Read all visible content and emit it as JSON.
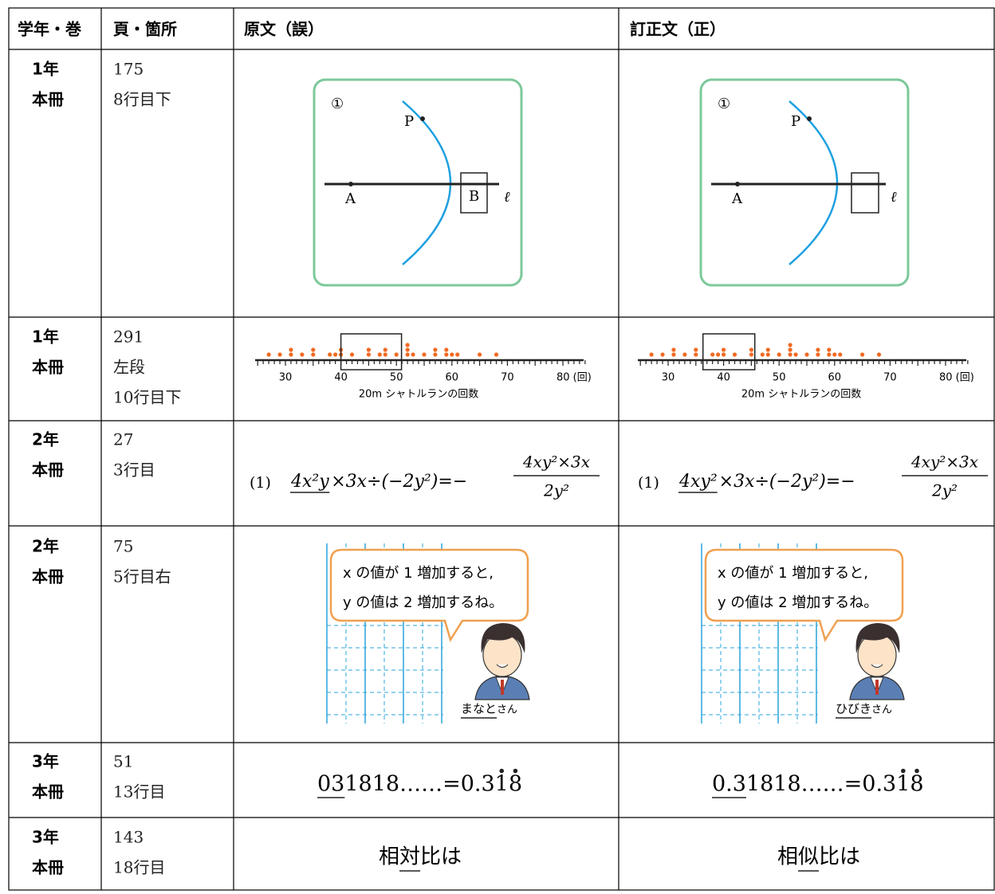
{
  "table": {
    "header": [
      "学年・巻",
      "頁・箇所",
      "原文（誤）",
      "訂正文（正）"
    ],
    "rows": [
      {
        "grade": [
          "1年",
          "本冊"
        ],
        "place": [
          "175",
          "8行目下"
        ],
        "original": {
          "circle_label": "①",
          "points": [
            "P",
            "A",
            "B"
          ],
          "line_label": "ℓ"
        },
        "corrected": {
          "circle_label": "①",
          "points": [
            "P",
            "A"
          ],
          "line_label": "ℓ"
        }
      },
      {
        "grade": [
          "1年",
          "本冊"
        ],
        "place": [
          "291",
          "左段",
          "10行目下"
        ],
        "original": {
          "ticks": [
            "30",
            "40",
            "50",
            "60",
            "70",
            "80 (回)"
          ],
          "axis_label": "20m シャトルランの回数"
        },
        "corrected": {
          "ticks": [
            "30",
            "40",
            "50",
            "60",
            "70",
            "80 (回)"
          ],
          "axis_label": "20m シャトルランの回数"
        }
      },
      {
        "grade": [
          "2年",
          "本冊"
        ],
        "place": [
          "27",
          "3行目"
        ],
        "original": {
          "label": "(1)",
          "underlined": "4x²y",
          "rest": "×3x÷(−2y²)=−",
          "numerator": "4xy²×3x",
          "denominator": "2y²"
        },
        "corrected": {
          "label": "(1)",
          "underlined": "4xy²",
          "rest": "×3x÷(−2y²)=−",
          "numerator": "4xy²×3x",
          "denominator": "2y²"
        }
      },
      {
        "grade": [
          "2年",
          "本冊"
        ],
        "place": [
          "75",
          "5行目右"
        ],
        "original": {
          "bubble": [
            "x の値が 1 増加すると,",
            "y の値は 2 増加するね。"
          ],
          "name": "まなと",
          "suffix": "さん"
        },
        "corrected": {
          "bubble": [
            "x の値が 1 増加すると,",
            "y の値は 2 増加するね。"
          ],
          "name": "ひびき",
          "suffix": "さん"
        }
      },
      {
        "grade": [
          "3年",
          "本冊"
        ],
        "place": [
          "51",
          "13行目"
        ],
        "original": {
          "underlined": "03",
          "rest": "1818……=0.3",
          "dotted": [
            "1",
            "8"
          ]
        },
        "corrected": {
          "underlined": "0.3",
          "rest": "1818……=0.3",
          "dotted": [
            "1",
            "8"
          ]
        }
      },
      {
        "grade": [
          "3年",
          "本冊"
        ],
        "place": [
          "143",
          "18行目"
        ],
        "original": [
          "相",
          "対",
          "比は"
        ],
        "corrected": [
          "相",
          "似",
          "比は"
        ]
      }
    ]
  }
}
